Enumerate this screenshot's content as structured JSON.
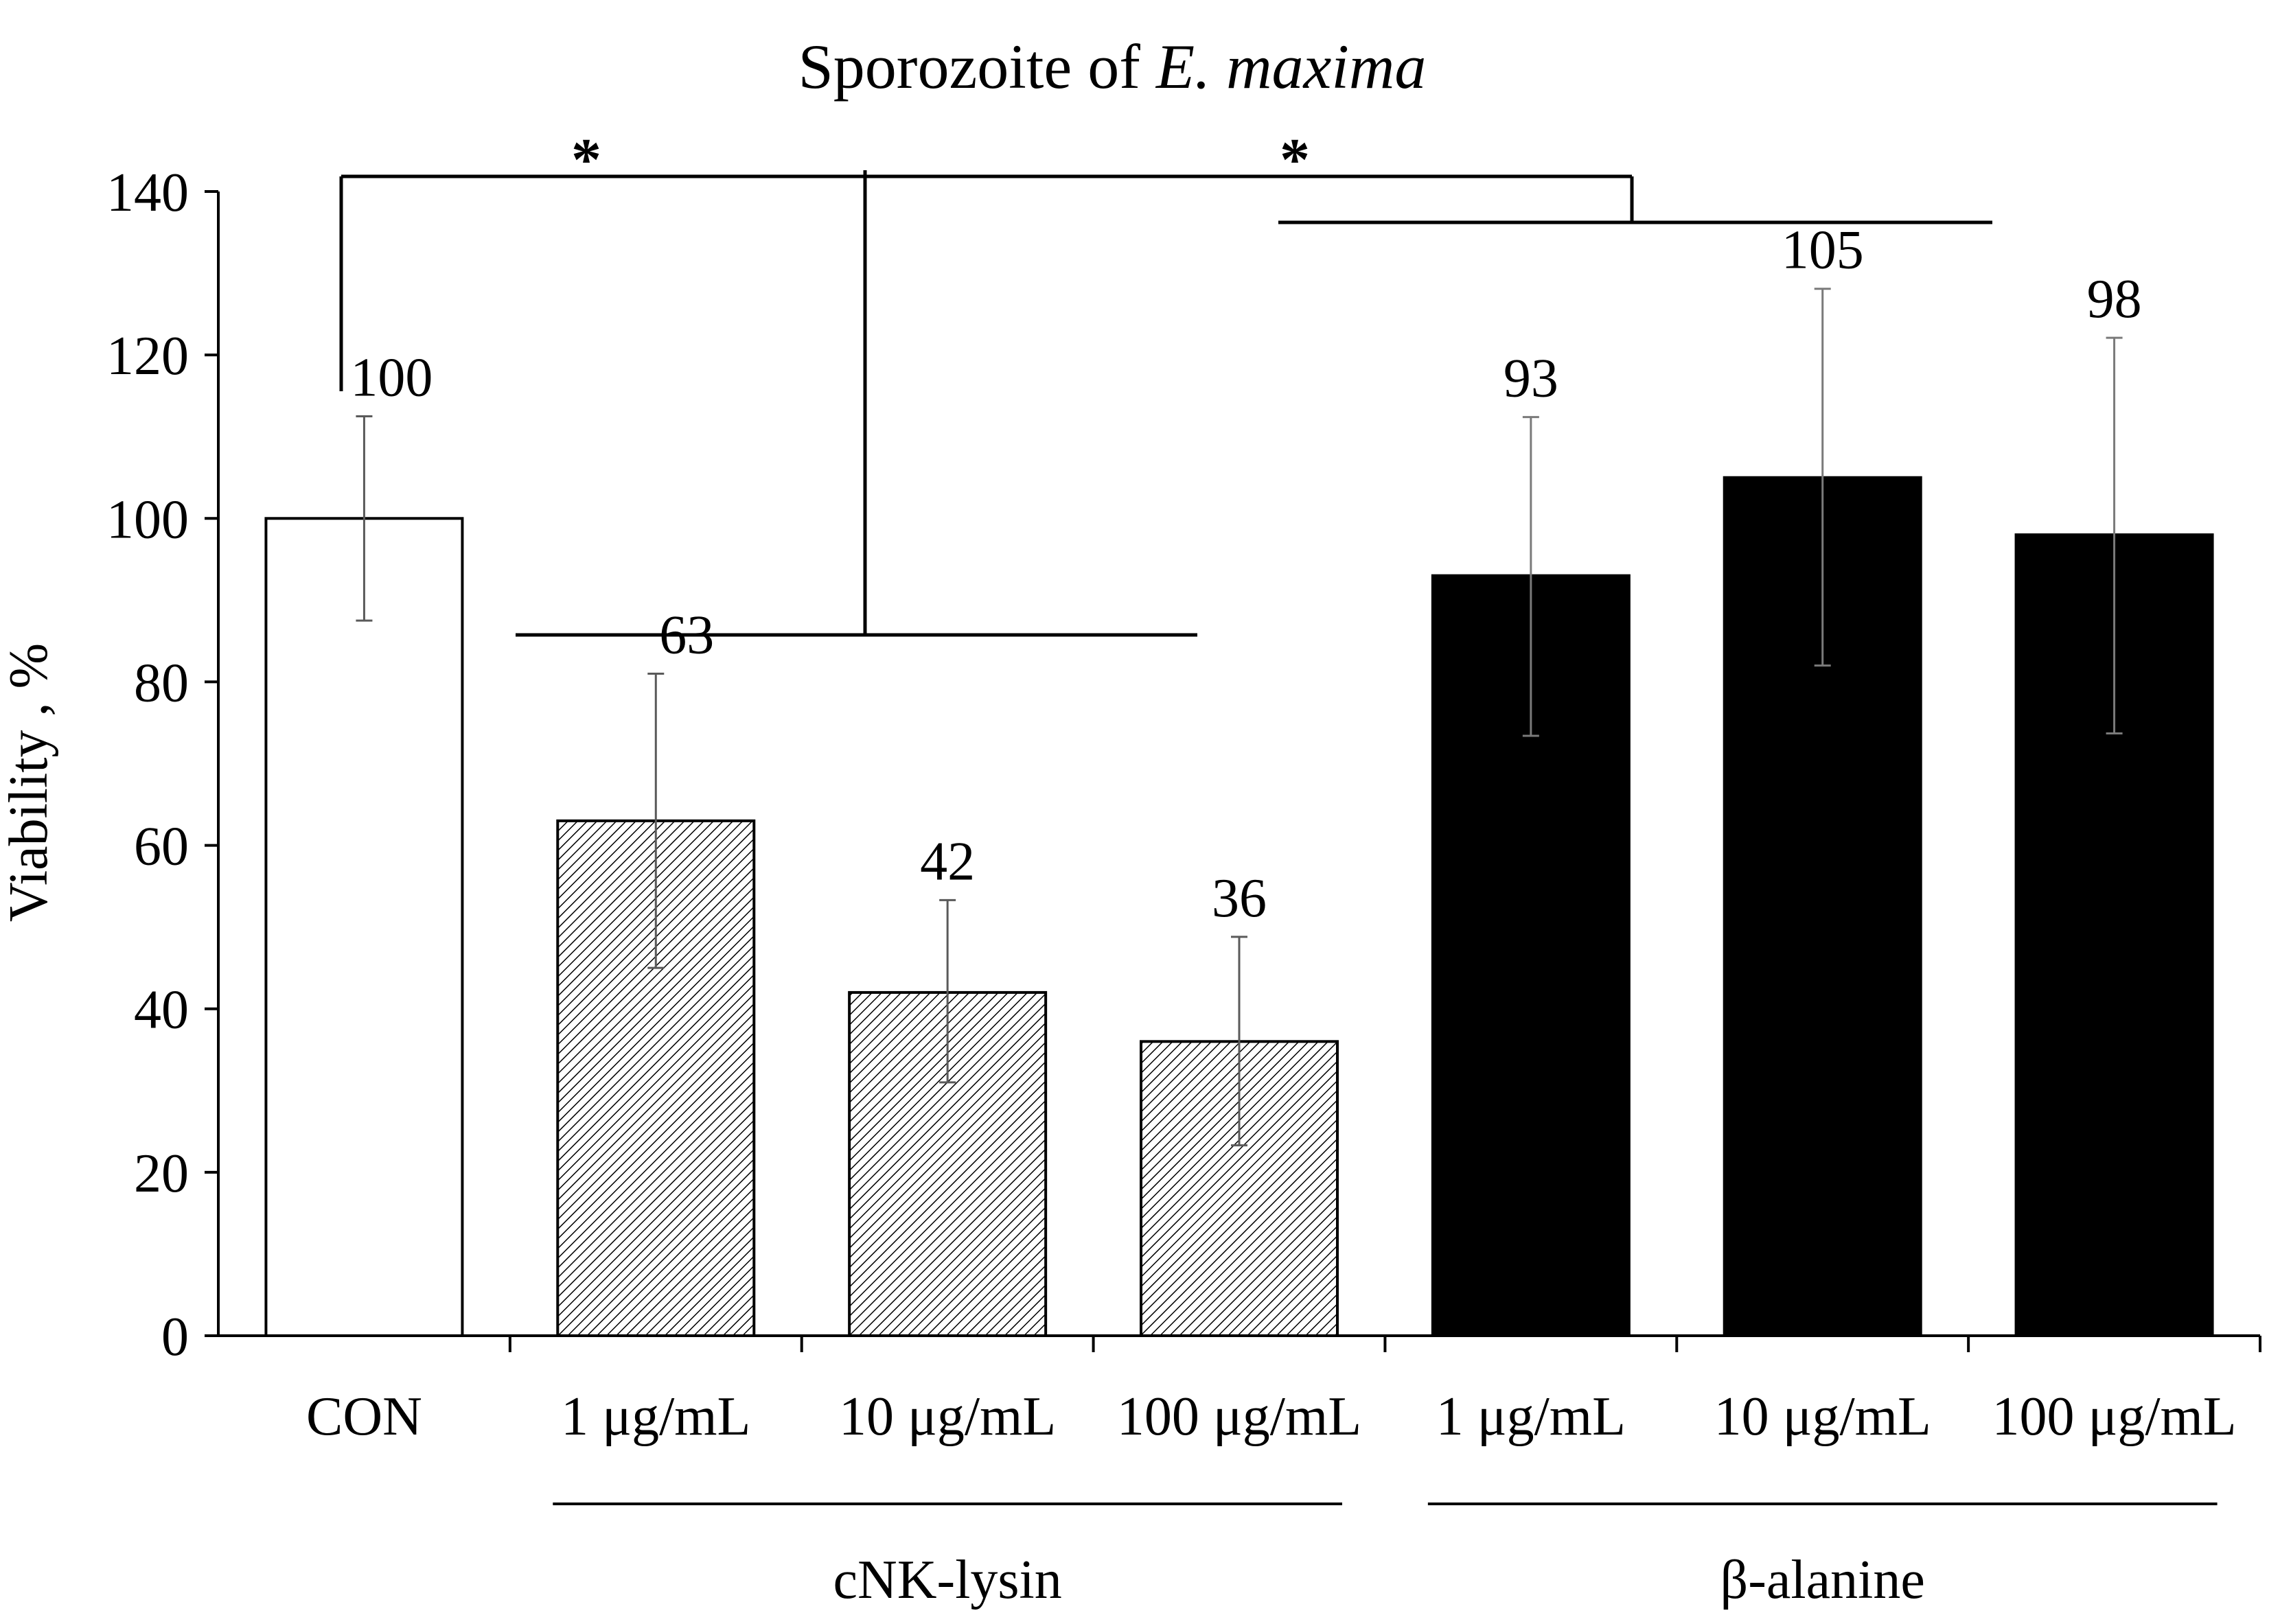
{
  "chart_data": {
    "type": "bar",
    "title_prefix": "Sporozoite of ",
    "title_italic": "E. maxima",
    "ylabel": "Viability , %",
    "ylim": [
      0,
      140
    ],
    "yticks": [
      0,
      20,
      40,
      60,
      80,
      100,
      120,
      140
    ],
    "ytick_labels": [
      "0",
      "20",
      "40",
      "60",
      "80",
      "100",
      "120",
      "140"
    ],
    "categories": [
      "CON",
      "1 μg/mL",
      "10 μg/mL",
      "100 μg/mL",
      "1 μg/mL",
      "10 μg/mL",
      "100 μg/mL"
    ],
    "values": [
      100,
      63,
      42,
      36,
      93,
      105,
      98
    ],
    "value_labels": [
      "100",
      "63",
      "42",
      "36",
      "93",
      "105",
      "98"
    ],
    "error_upper": [
      112.5,
      81,
      53.3,
      48.8,
      112.4,
      128.1,
      122.1
    ],
    "error_lower": [
      87.5,
      45,
      31,
      23.3,
      73.4,
      82,
      73.7
    ],
    "fills": [
      "white",
      "hatch",
      "hatch",
      "hatch",
      "black",
      "black",
      "black"
    ],
    "groups": [
      {
        "name": "cNK-lysin",
        "start": 1,
        "end": 3
      },
      {
        "name": "β-alanine",
        "start": 4,
        "end": 6
      }
    ],
    "significance": [
      {
        "marker": "*",
        "compare": "CON vs cNK-lysin"
      },
      {
        "marker": "*",
        "compare": "cNK-lysin vs β-alanine"
      }
    ],
    "colors": {
      "axis": "#000000",
      "bar_outline": "#000000",
      "error_bar": "#5a5a5a",
      "black_bar": "#000000",
      "white_bar": "#ffffff"
    }
  }
}
